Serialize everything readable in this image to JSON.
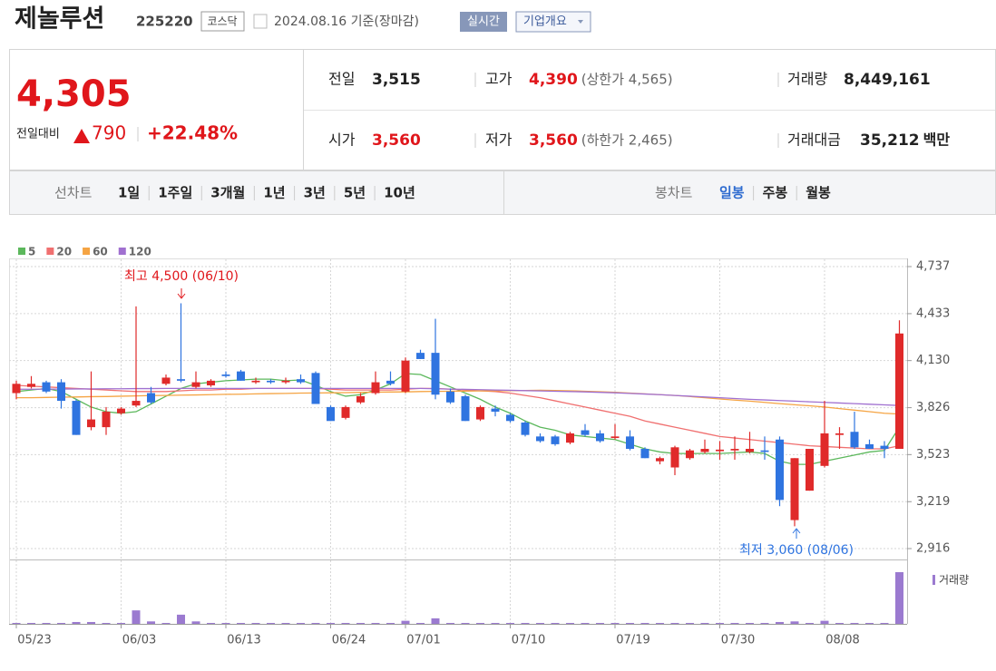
{
  "header": {
    "name": "제놀루션",
    "code": "225220",
    "market": "코스닥",
    "date": "2024.08.16 기준(장마감)",
    "realtime": "실시간",
    "overview": "기업개요"
  },
  "price": {
    "current": "4,305",
    "change_label": "전일대비",
    "change": "790",
    "rate": "+22.48%"
  },
  "quotes": [
    {
      "label": "전일",
      "value": "3,515",
      "color": "#222222"
    },
    {
      "label": "고가",
      "value": "4,390",
      "note": "(상한가 4,565)",
      "color": "#e0161b"
    },
    {
      "label": "거래량",
      "value": "8,449,161",
      "color": "#222222"
    },
    {
      "label": "시가",
      "value": "3,560",
      "color": "#e0161b"
    },
    {
      "label": "저가",
      "value": "3,560",
      "note": "(하한가 2,465)",
      "color": "#e0161b"
    },
    {
      "label": "거래대금",
      "value": "35,212",
      "unit": "백만",
      "color": "#222222"
    }
  ],
  "tabs": {
    "line_label": "선차트",
    "line_items": [
      "1일",
      "1주일",
      "3개월",
      "1년",
      "3년",
      "5년",
      "10년"
    ],
    "candle_label": "봉차트",
    "candle_items": [
      "일봉",
      "주봉",
      "월봉"
    ]
  },
  "chart_data": {
    "type": "candlestick",
    "up_color": "#e02a2a",
    "down_color": "#2f74e0",
    "categories": [
      "05/23",
      null,
      null,
      null,
      null,
      null,
      null,
      "06/03",
      null,
      null,
      null,
      null,
      null,
      null,
      "06/13",
      null,
      null,
      null,
      null,
      null,
      null,
      "06/24",
      null,
      null,
      null,
      null,
      "07/01",
      null,
      null,
      null,
      null,
      null,
      null,
      "07/10",
      null,
      null,
      null,
      null,
      null,
      null,
      "07/19",
      null,
      null,
      null,
      null,
      null,
      null,
      "07/30",
      null,
      null,
      null,
      null,
      null,
      null,
      "08/08",
      null,
      null,
      null,
      null,
      null
    ],
    "open": [
      3920,
      3960,
      3990,
      3990,
      3870,
      3700,
      3700,
      3790,
      3840,
      3920,
      3980,
      4010,
      3960,
      3970,
      4040,
      4060,
      3990,
      4000,
      3990,
      4010,
      4050,
      3830,
      3760,
      3860,
      3920,
      4000,
      3930,
      4180,
      4180,
      3930,
      3900,
      3750,
      3820,
      3780,
      3730,
      3640,
      3640,
      3600,
      3680,
      3660,
      3630,
      3640,
      3560,
      3480,
      3440,
      3500,
      3540,
      3545,
      3550,
      3540,
      3550,
      3620,
      3100,
      3290,
      3450,
      3650,
      3670,
      3590,
      3580,
      3560
    ],
    "high": [
      4000,
      4030,
      4000,
      4010,
      3880,
      4060,
      3830,
      3830,
      4480,
      3960,
      4040,
      4500,
      4060,
      4010,
      4060,
      4070,
      4020,
      4010,
      4020,
      4040,
      4060,
      3840,
      3840,
      3920,
      4060,
      4060,
      4150,
      4200,
      4400,
      3950,
      3910,
      3840,
      3840,
      3790,
      3740,
      3660,
      3650,
      3670,
      3720,
      3680,
      3720,
      3680,
      3570,
      3510,
      3580,
      3560,
      3620,
      3610,
      3640,
      3670,
      3640,
      3640,
      3500,
      3560,
      3870,
      3700,
      3800,
      3620,
      3610,
      4390
    ],
    "low": [
      3880,
      3950,
      3920,
      3820,
      3650,
      3680,
      3650,
      3780,
      3830,
      3850,
      3970,
      3990,
      3950,
      3960,
      4020,
      4000,
      3980,
      3980,
      3980,
      3980,
      3850,
      3740,
      3750,
      3850,
      3910,
      3970,
      3920,
      4140,
      3880,
      3850,
      3740,
      3740,
      3770,
      3730,
      3640,
      3600,
      3580,
      3590,
      3640,
      3600,
      3620,
      3550,
      3500,
      3460,
      3390,
      3490,
      3530,
      3490,
      3490,
      3530,
      3490,
      3190,
      3060,
      3290,
      3440,
      3560,
      3560,
      3560,
      3500,
      3560
    ],
    "close": [
      3980,
      3980,
      3930,
      3870,
      3650,
      3750,
      3800,
      3820,
      3870,
      3860,
      4020,
      4000,
      3990,
      4000,
      4030,
      4000,
      4000,
      3990,
      4000,
      3990,
      3850,
      3740,
      3830,
      3900,
      3990,
      3980,
      4130,
      4140,
      3910,
      3860,
      3740,
      3830,
      3800,
      3740,
      3650,
      3610,
      3590,
      3660,
      3650,
      3610,
      3640,
      3560,
      3500,
      3500,
      3570,
      3550,
      3560,
      3555,
      3560,
      3560,
      3540,
      3230,
      3500,
      3560,
      3660,
      3660,
      3570,
      3560,
      3560,
      4305
    ],
    "series": [
      {
        "name": "5",
        "color": "#5cb85c",
        "values": [
          3930,
          3940,
          3950,
          3930,
          3880,
          3830,
          3800,
          3790,
          3800,
          3850,
          3900,
          3950,
          3980,
          3990,
          4000,
          4005,
          4010,
          4010,
          4000,
          4005,
          3970,
          3930,
          3900,
          3910,
          3940,
          3980,
          4046,
          4040,
          4000,
          3960,
          3920,
          3880,
          3830,
          3790,
          3740,
          3700,
          3680,
          3650,
          3640,
          3630,
          3620,
          3590,
          3560,
          3540,
          3530,
          3530,
          3530,
          3530,
          3535,
          3540,
          3530,
          3480,
          3460,
          3460,
          3480,
          3500,
          3520,
          3540,
          3550,
          3700
        ]
      },
      {
        "name": "20",
        "color": "#f07070",
        "values": [
          3970,
          3965,
          3960,
          3955,
          3950,
          3945,
          3940,
          3935,
          3930,
          3930,
          3930,
          3935,
          3940,
          3940,
          3945,
          3945,
          3950,
          3950,
          3950,
          3950,
          3950,
          3945,
          3940,
          3940,
          3940,
          3940,
          3945,
          3950,
          3950,
          3945,
          3940,
          3935,
          3930,
          3920,
          3905,
          3890,
          3870,
          3850,
          3830,
          3810,
          3790,
          3770,
          3740,
          3720,
          3700,
          3680,
          3660,
          3640,
          3630,
          3620,
          3610,
          3600,
          3590,
          3580,
          3575,
          3570,
          3565,
          3560,
          3560,
          3580
        ]
      },
      {
        "name": "60",
        "color": "#f5a443",
        "values": [
          3890,
          3890,
          3892,
          3894,
          3895,
          3897,
          3898,
          3900,
          3902,
          3904,
          3905,
          3907,
          3908,
          3910,
          3912,
          3913,
          3915,
          3917,
          3918,
          3920,
          3921,
          3922,
          3923,
          3925,
          3926,
          3927,
          3928,
          3930,
          3931,
          3932,
          3933,
          3934,
          3935,
          3936,
          3937,
          3938,
          3937,
          3935,
          3932,
          3929,
          3925,
          3920,
          3915,
          3910,
          3905,
          3898,
          3890,
          3882,
          3875,
          3868,
          3860,
          3852,
          3845,
          3838,
          3830,
          3820,
          3810,
          3800,
          3790,
          3785
        ]
      },
      {
        "name": "120",
        "color": "#a070d0",
        "values": [
          3945,
          3945,
          3946,
          3946,
          3947,
          3947,
          3948,
          3948,
          3949,
          3949,
          3950,
          3950,
          3950,
          3950,
          3950,
          3950,
          3950,
          3950,
          3950,
          3950,
          3950,
          3950,
          3950,
          3950,
          3950,
          3950,
          3950,
          3950,
          3948,
          3946,
          3944,
          3942,
          3940,
          3938,
          3936,
          3934,
          3932,
          3930,
          3928,
          3925,
          3922,
          3918,
          3914,
          3910,
          3905,
          3900,
          3895,
          3890,
          3885,
          3880,
          3876,
          3872,
          3868,
          3864,
          3860,
          3856,
          3852,
          3848,
          3844,
          3840
        ]
      }
    ],
    "volume": {
      "name": "거래량",
      "color": "#9b7ad0",
      "values": [
        150000,
        150000,
        150000,
        150000,
        300000,
        300000,
        150000,
        150000,
        2200000,
        400000,
        150000,
        1500000,
        400000,
        150000,
        150000,
        150000,
        150000,
        150000,
        150000,
        150000,
        150000,
        150000,
        150000,
        150000,
        150000,
        150000,
        500000,
        150000,
        900000,
        150000,
        150000,
        150000,
        150000,
        150000,
        150000,
        150000,
        150000,
        150000,
        150000,
        150000,
        150000,
        150000,
        150000,
        150000,
        150000,
        150000,
        150000,
        150000,
        150000,
        150000,
        150000,
        300000,
        400000,
        150000,
        500000,
        150000,
        150000,
        150000,
        150000,
        8449161
      ]
    },
    "ylim": [
      2916,
      4737
    ],
    "yticks": [
      {
        "value": 2916,
        "label": "2,916"
      },
      {
        "value": 3219,
        "label": "3,219"
      },
      {
        "value": 3523,
        "label": "3,523"
      },
      {
        "value": 3826,
        "label": "3,826"
      },
      {
        "value": 4130,
        "label": "4,130"
      },
      {
        "value": 4433,
        "label": "4,433"
      },
      {
        "value": 4737,
        "label": "4,737"
      }
    ],
    "grid": true,
    "annotations": [
      {
        "text": "최고 4,500 (06/10)",
        "color": "#e0161b"
      },
      {
        "text": "최저 3,060 (08/06)",
        "color": "#2f74e0"
      }
    ]
  }
}
